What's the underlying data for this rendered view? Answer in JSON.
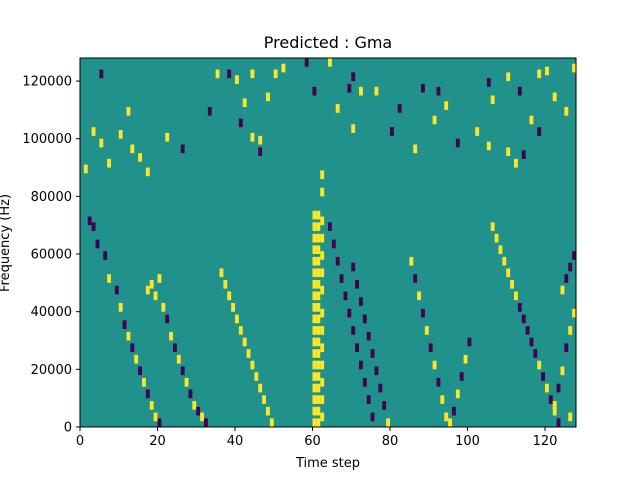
{
  "chart_data": {
    "type": "heatmap",
    "title": "Predicted : Gma",
    "xlabel": "Time step",
    "ylabel": "Frequency (Hz)",
    "xlim": [
      0,
      128
    ],
    "ylim": [
      0,
      128000
    ],
    "x_ticks": [
      0,
      20,
      40,
      60,
      80,
      100,
      120
    ],
    "y_ticks": [
      0,
      20000,
      40000,
      60000,
      80000,
      100000,
      120000
    ],
    "x_tick_labels": [
      "0",
      "20",
      "40",
      "60",
      "80",
      "100",
      "120"
    ],
    "y_tick_labels": [
      "0",
      "20000",
      "40000",
      "60000",
      "80000",
      "100000",
      "120000"
    ],
    "colors": {
      "background": "#21918c",
      "high": "#fde725",
      "low": "#440154"
    },
    "grid": false,
    "cells_note": "Binary-like spectrogram mask; cells list [time_step, frequency_bin(0-127, each 1000 Hz), value(1=high,-1=low)]",
    "cells": [
      [
        5,
        123,
        -1
      ],
      [
        12,
        110,
        1
      ],
      [
        13,
        97,
        1
      ],
      [
        35,
        123,
        1
      ],
      [
        38,
        123,
        -1
      ],
      [
        40,
        121,
        1
      ],
      [
        42,
        113,
        1
      ],
      [
        44,
        123,
        1
      ],
      [
        46,
        100,
        1
      ],
      [
        50,
        123,
        1
      ],
      [
        52,
        125,
        1
      ],
      [
        58,
        127,
        -1
      ],
      [
        64,
        127,
        1
      ],
      [
        69,
        118,
        -1
      ],
      [
        70,
        122,
        -1
      ],
      [
        76,
        117,
        1
      ],
      [
        82,
        111,
        -1
      ],
      [
        88,
        118,
        -1
      ],
      [
        92,
        117,
        -1
      ],
      [
        94,
        112,
        1
      ],
      [
        105,
        120,
        -1
      ],
      [
        106,
        114,
        1
      ],
      [
        110,
        122,
        1
      ],
      [
        113,
        117,
        -1
      ],
      [
        118,
        123,
        1
      ],
      [
        120,
        124,
        1
      ],
      [
        122,
        115,
        1
      ],
      [
        125,
        110,
        1
      ],
      [
        127,
        125,
        1
      ],
      [
        1,
        90,
        1
      ],
      [
        3,
        103,
        1
      ],
      [
        5,
        99,
        1
      ],
      [
        7,
        92,
        1
      ],
      [
        10,
        102,
        1
      ],
      [
        15,
        94,
        1
      ],
      [
        17,
        89,
        1
      ],
      [
        22,
        101,
        1
      ],
      [
        26,
        97,
        -1
      ],
      [
        33,
        110,
        -1
      ],
      [
        41,
        106,
        -1
      ],
      [
        44,
        101,
        1
      ],
      [
        46,
        96,
        -1
      ],
      [
        48,
        115,
        1
      ],
      [
        60,
        117,
        -1
      ],
      [
        66,
        111,
        1
      ],
      [
        70,
        104,
        1
      ],
      [
        72,
        117,
        1
      ],
      [
        80,
        103,
        -1
      ],
      [
        86,
        97,
        1
      ],
      [
        91,
        107,
        1
      ],
      [
        97,
        99,
        -1
      ],
      [
        102,
        103,
        1
      ],
      [
        105,
        98,
        1
      ],
      [
        110,
        96,
        1
      ],
      [
        112,
        92,
        1
      ],
      [
        114,
        95,
        -1
      ],
      [
        116,
        107,
        1
      ],
      [
        118,
        103,
        -1
      ],
      [
        2,
        72,
        -1
      ],
      [
        3,
        70,
        -1
      ],
      [
        4,
        64,
        -1
      ],
      [
        6,
        60,
        -1
      ],
      [
        7,
        52,
        1
      ],
      [
        9,
        48,
        -1
      ],
      [
        10,
        42,
        1
      ],
      [
        11,
        36,
        -1
      ],
      [
        12,
        32,
        1
      ],
      [
        13,
        28,
        -1
      ],
      [
        14,
        24,
        1
      ],
      [
        15,
        20,
        -1
      ],
      [
        16,
        16,
        1
      ],
      [
        17,
        12,
        -1
      ],
      [
        18,
        8,
        1
      ],
      [
        19,
        4,
        1
      ],
      [
        20,
        2,
        -1
      ],
      [
        17,
        48,
        1
      ],
      [
        18,
        50,
        1
      ],
      [
        19,
        46,
        1
      ],
      [
        20,
        52,
        1
      ],
      [
        21,
        42,
        1
      ],
      [
        22,
        38,
        -1
      ],
      [
        23,
        32,
        1
      ],
      [
        24,
        28,
        -1
      ],
      [
        25,
        24,
        1
      ],
      [
        26,
        20,
        -1
      ],
      [
        27,
        16,
        1
      ],
      [
        28,
        12,
        -1
      ],
      [
        29,
        8,
        1
      ],
      [
        30,
        6,
        -1
      ],
      [
        31,
        4,
        1
      ],
      [
        32,
        2,
        -1
      ],
      [
        36,
        54,
        1
      ],
      [
        37,
        50,
        1
      ],
      [
        38,
        46,
        1
      ],
      [
        39,
        42,
        1
      ],
      [
        40,
        38,
        1
      ],
      [
        41,
        34,
        1
      ],
      [
        42,
        30,
        1
      ],
      [
        43,
        26,
        1
      ],
      [
        44,
        22,
        1
      ],
      [
        45,
        18,
        1
      ],
      [
        46,
        14,
        1
      ],
      [
        47,
        10,
        1
      ],
      [
        48,
        6,
        1
      ],
      [
        49,
        2,
        1
      ],
      [
        60,
        74,
        1
      ],
      [
        60,
        70,
        1
      ],
      [
        60,
        66,
        1
      ],
      [
        60,
        62,
        1
      ],
      [
        60,
        58,
        1
      ],
      [
        60,
        54,
        1
      ],
      [
        60,
        50,
        1
      ],
      [
        60,
        46,
        1
      ],
      [
        60,
        42,
        1
      ],
      [
        60,
        38,
        1
      ],
      [
        60,
        34,
        1
      ],
      [
        60,
        30,
        1
      ],
      [
        60,
        26,
        1
      ],
      [
        60,
        22,
        1
      ],
      [
        60,
        18,
        1
      ],
      [
        60,
        14,
        1
      ],
      [
        60,
        10,
        1
      ],
      [
        60,
        6,
        1
      ],
      [
        60,
        2,
        1
      ],
      [
        61,
        74,
        1
      ],
      [
        61,
        70,
        1
      ],
      [
        61,
        66,
        1
      ],
      [
        61,
        62,
        1
      ],
      [
        61,
        58,
        1
      ],
      [
        61,
        54,
        1
      ],
      [
        61,
        50,
        1
      ],
      [
        61,
        46,
        1
      ],
      [
        61,
        42,
        1
      ],
      [
        61,
        38,
        1
      ],
      [
        61,
        34,
        1
      ],
      [
        61,
        30,
        1
      ],
      [
        61,
        26,
        1
      ],
      [
        61,
        22,
        1
      ],
      [
        61,
        18,
        1
      ],
      [
        61,
        14,
        1
      ],
      [
        61,
        10,
        1
      ],
      [
        61,
        6,
        1
      ],
      [
        61,
        2,
        1
      ],
      [
        62,
        88,
        1
      ],
      [
        62,
        82,
        1
      ],
      [
        62,
        72,
        1
      ],
      [
        62,
        66,
        1
      ],
      [
        62,
        60,
        1
      ],
      [
        62,
        54,
        1
      ],
      [
        62,
        48,
        1
      ],
      [
        62,
        40,
        1
      ],
      [
        62,
        34,
        1
      ],
      [
        62,
        28,
        1
      ],
      [
        62,
        22,
        1
      ],
      [
        62,
        16,
        1
      ],
      [
        62,
        10,
        1
      ],
      [
        62,
        4,
        1
      ],
      [
        64,
        70,
        -1
      ],
      [
        65,
        64,
        -1
      ],
      [
        66,
        58,
        -1
      ],
      [
        67,
        52,
        -1
      ],
      [
        68,
        46,
        -1
      ],
      [
        69,
        40,
        -1
      ],
      [
        70,
        34,
        -1
      ],
      [
        71,
        28,
        -1
      ],
      [
        72,
        22,
        -1
      ],
      [
        73,
        16,
        -1
      ],
      [
        74,
        10,
        -1
      ],
      [
        75,
        4,
        -1
      ],
      [
        70,
        56,
        -1
      ],
      [
        71,
        50,
        -1
      ],
      [
        72,
        44,
        -1
      ],
      [
        73,
        38,
        -1
      ],
      [
        74,
        32,
        -1
      ],
      [
        75,
        26,
        -1
      ],
      [
        76,
        20,
        -1
      ],
      [
        77,
        14,
        -1
      ],
      [
        78,
        8,
        -1
      ],
      [
        79,
        2,
        1
      ],
      [
        85,
        58,
        1
      ],
      [
        86,
        52,
        -1
      ],
      [
        87,
        46,
        1
      ],
      [
        88,
        40,
        -1
      ],
      [
        89,
        34,
        1
      ],
      [
        90,
        28,
        -1
      ],
      [
        91,
        22,
        1
      ],
      [
        92,
        16,
        -1
      ],
      [
        93,
        10,
        1
      ],
      [
        94,
        4,
        1
      ],
      [
        95,
        2,
        1
      ],
      [
        96,
        6,
        -1
      ],
      [
        97,
        12,
        1
      ],
      [
        98,
        18,
        -1
      ],
      [
        99,
        24,
        1
      ],
      [
        100,
        30,
        -1
      ],
      [
        106,
        70,
        1
      ],
      [
        107,
        66,
        1
      ],
      [
        108,
        62,
        1
      ],
      [
        109,
        58,
        1
      ],
      [
        110,
        54,
        1
      ],
      [
        111,
        50,
        1
      ],
      [
        112,
        46,
        1
      ],
      [
        113,
        42,
        -1
      ],
      [
        114,
        38,
        -1
      ],
      [
        115,
        34,
        -1
      ],
      [
        116,
        30,
        -1
      ],
      [
        117,
        26,
        -1
      ],
      [
        118,
        22,
        1
      ],
      [
        119,
        18,
        -1
      ],
      [
        120,
        14,
        1
      ],
      [
        121,
        10,
        -1
      ],
      [
        122,
        6,
        1
      ],
      [
        123,
        2,
        -1
      ],
      [
        124,
        48,
        1
      ],
      [
        125,
        52,
        -1
      ],
      [
        126,
        56,
        -1
      ],
      [
        127,
        60,
        -1
      ],
      [
        127,
        40,
        1
      ],
      [
        126,
        34,
        1
      ],
      [
        125,
        28,
        -1
      ],
      [
        124,
        20,
        1
      ],
      [
        123,
        14,
        -1
      ],
      [
        122,
        8,
        1
      ],
      [
        126,
        4,
        1
      ]
    ]
  }
}
